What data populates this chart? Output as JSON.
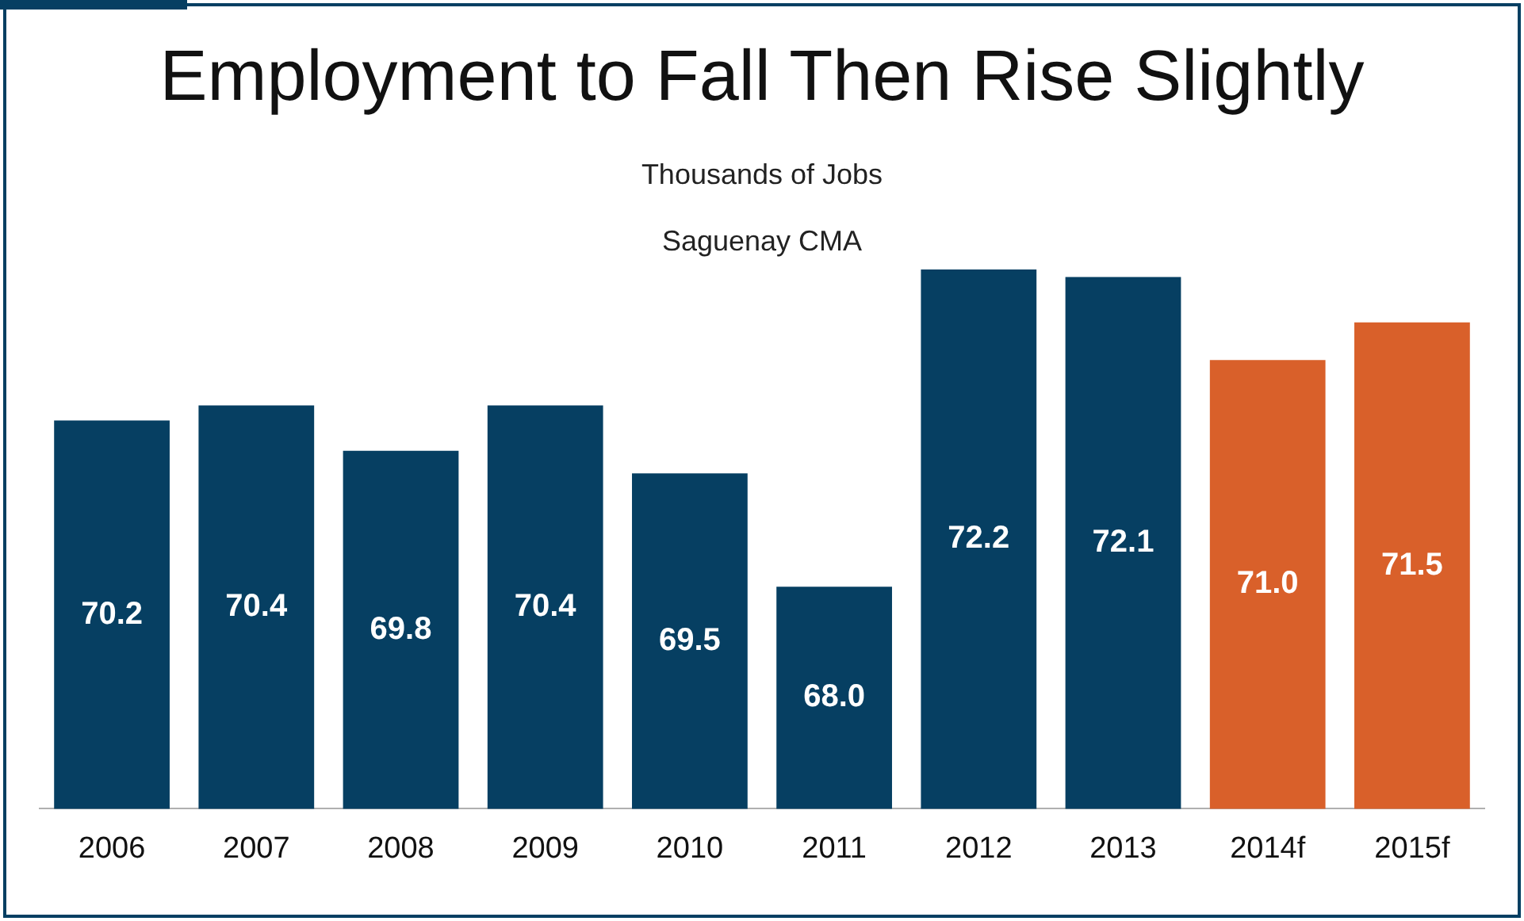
{
  "chart_data": {
    "type": "bar",
    "title": "Employment to Fall Then Rise Slightly",
    "subtitle": "Thousands of Jobs",
    "annotations": [
      "Saguenay CMA"
    ],
    "categories": [
      "2006",
      "2007",
      "2008",
      "2009",
      "2010",
      "2011",
      "2012",
      "2013",
      "2014f",
      "2015f"
    ],
    "values": [
      70.2,
      70.4,
      69.8,
      70.4,
      69.5,
      68.0,
      72.2,
      72.1,
      71.0,
      71.5
    ],
    "colors": [
      "#063f62",
      "#063f62",
      "#063f62",
      "#063f62",
      "#063f62",
      "#063f62",
      "#063f62",
      "#063f62",
      "#d9602a",
      "#d9602a"
    ],
    "value_labels": [
      "70.2",
      "70.4",
      "69.8",
      "70.4",
      "69.5",
      "68.0",
      "72.2",
      "72.1",
      "71.0",
      "71.5"
    ],
    "tick_labels": "x",
    "grid": false,
    "legend": false
  }
}
